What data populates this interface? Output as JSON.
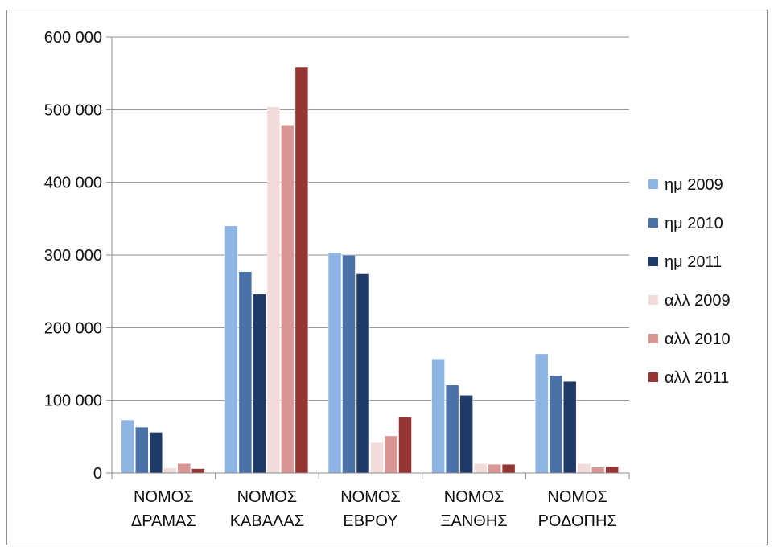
{
  "chart_data": {
    "type": "bar",
    "title": "",
    "xlabel": "",
    "ylabel": "",
    "ylim": [
      0,
      600000
    ],
    "yticks": [
      0,
      100000,
      200000,
      300000,
      400000,
      500000,
      600000
    ],
    "ytick_labels": [
      "0",
      "100 000",
      "200 000",
      "300 000",
      "400 000",
      "500 000",
      "600 000"
    ],
    "grid": true,
    "legend_position": "right",
    "categories": [
      [
        "ΝΟΜΟΣ",
        "ΔΡΑΜΑΣ"
      ],
      [
        "ΝΟΜΟΣ",
        "ΚΑΒΑΛΑΣ"
      ],
      [
        "ΝΟΜΟΣ",
        "ΕΒΡΟΥ"
      ],
      [
        "ΝΟΜΟΣ",
        "ΞΑΝΘΗΣ"
      ],
      [
        "ΝΟΜΟΣ",
        "ΡΟΔΟΠΗΣ"
      ]
    ],
    "series": [
      {
        "name": "ημ 2009",
        "color": "#8eb4e3",
        "values": [
          73000,
          340000,
          303000,
          157000,
          164000
        ]
      },
      {
        "name": "ημ 2010",
        "color": "#4a72a8",
        "values": [
          63000,
          277000,
          300000,
          121000,
          134000
        ]
      },
      {
        "name": "ημ 2011",
        "color": "#1f3a66",
        "values": [
          56000,
          246000,
          274000,
          107000,
          126000
        ]
      },
      {
        "name": "αλλ 2009",
        "color": "#f2dcdb",
        "values": [
          7000,
          504000,
          42000,
          13000,
          13000
        ]
      },
      {
        "name": "αλλ 2010",
        "color": "#d99694",
        "values": [
          13000,
          478000,
          51000,
          12000,
          8000
        ]
      },
      {
        "name": "αλλ 2011",
        "color": "#963634",
        "values": [
          6000,
          559000,
          77000,
          12000,
          9000
        ]
      }
    ]
  }
}
